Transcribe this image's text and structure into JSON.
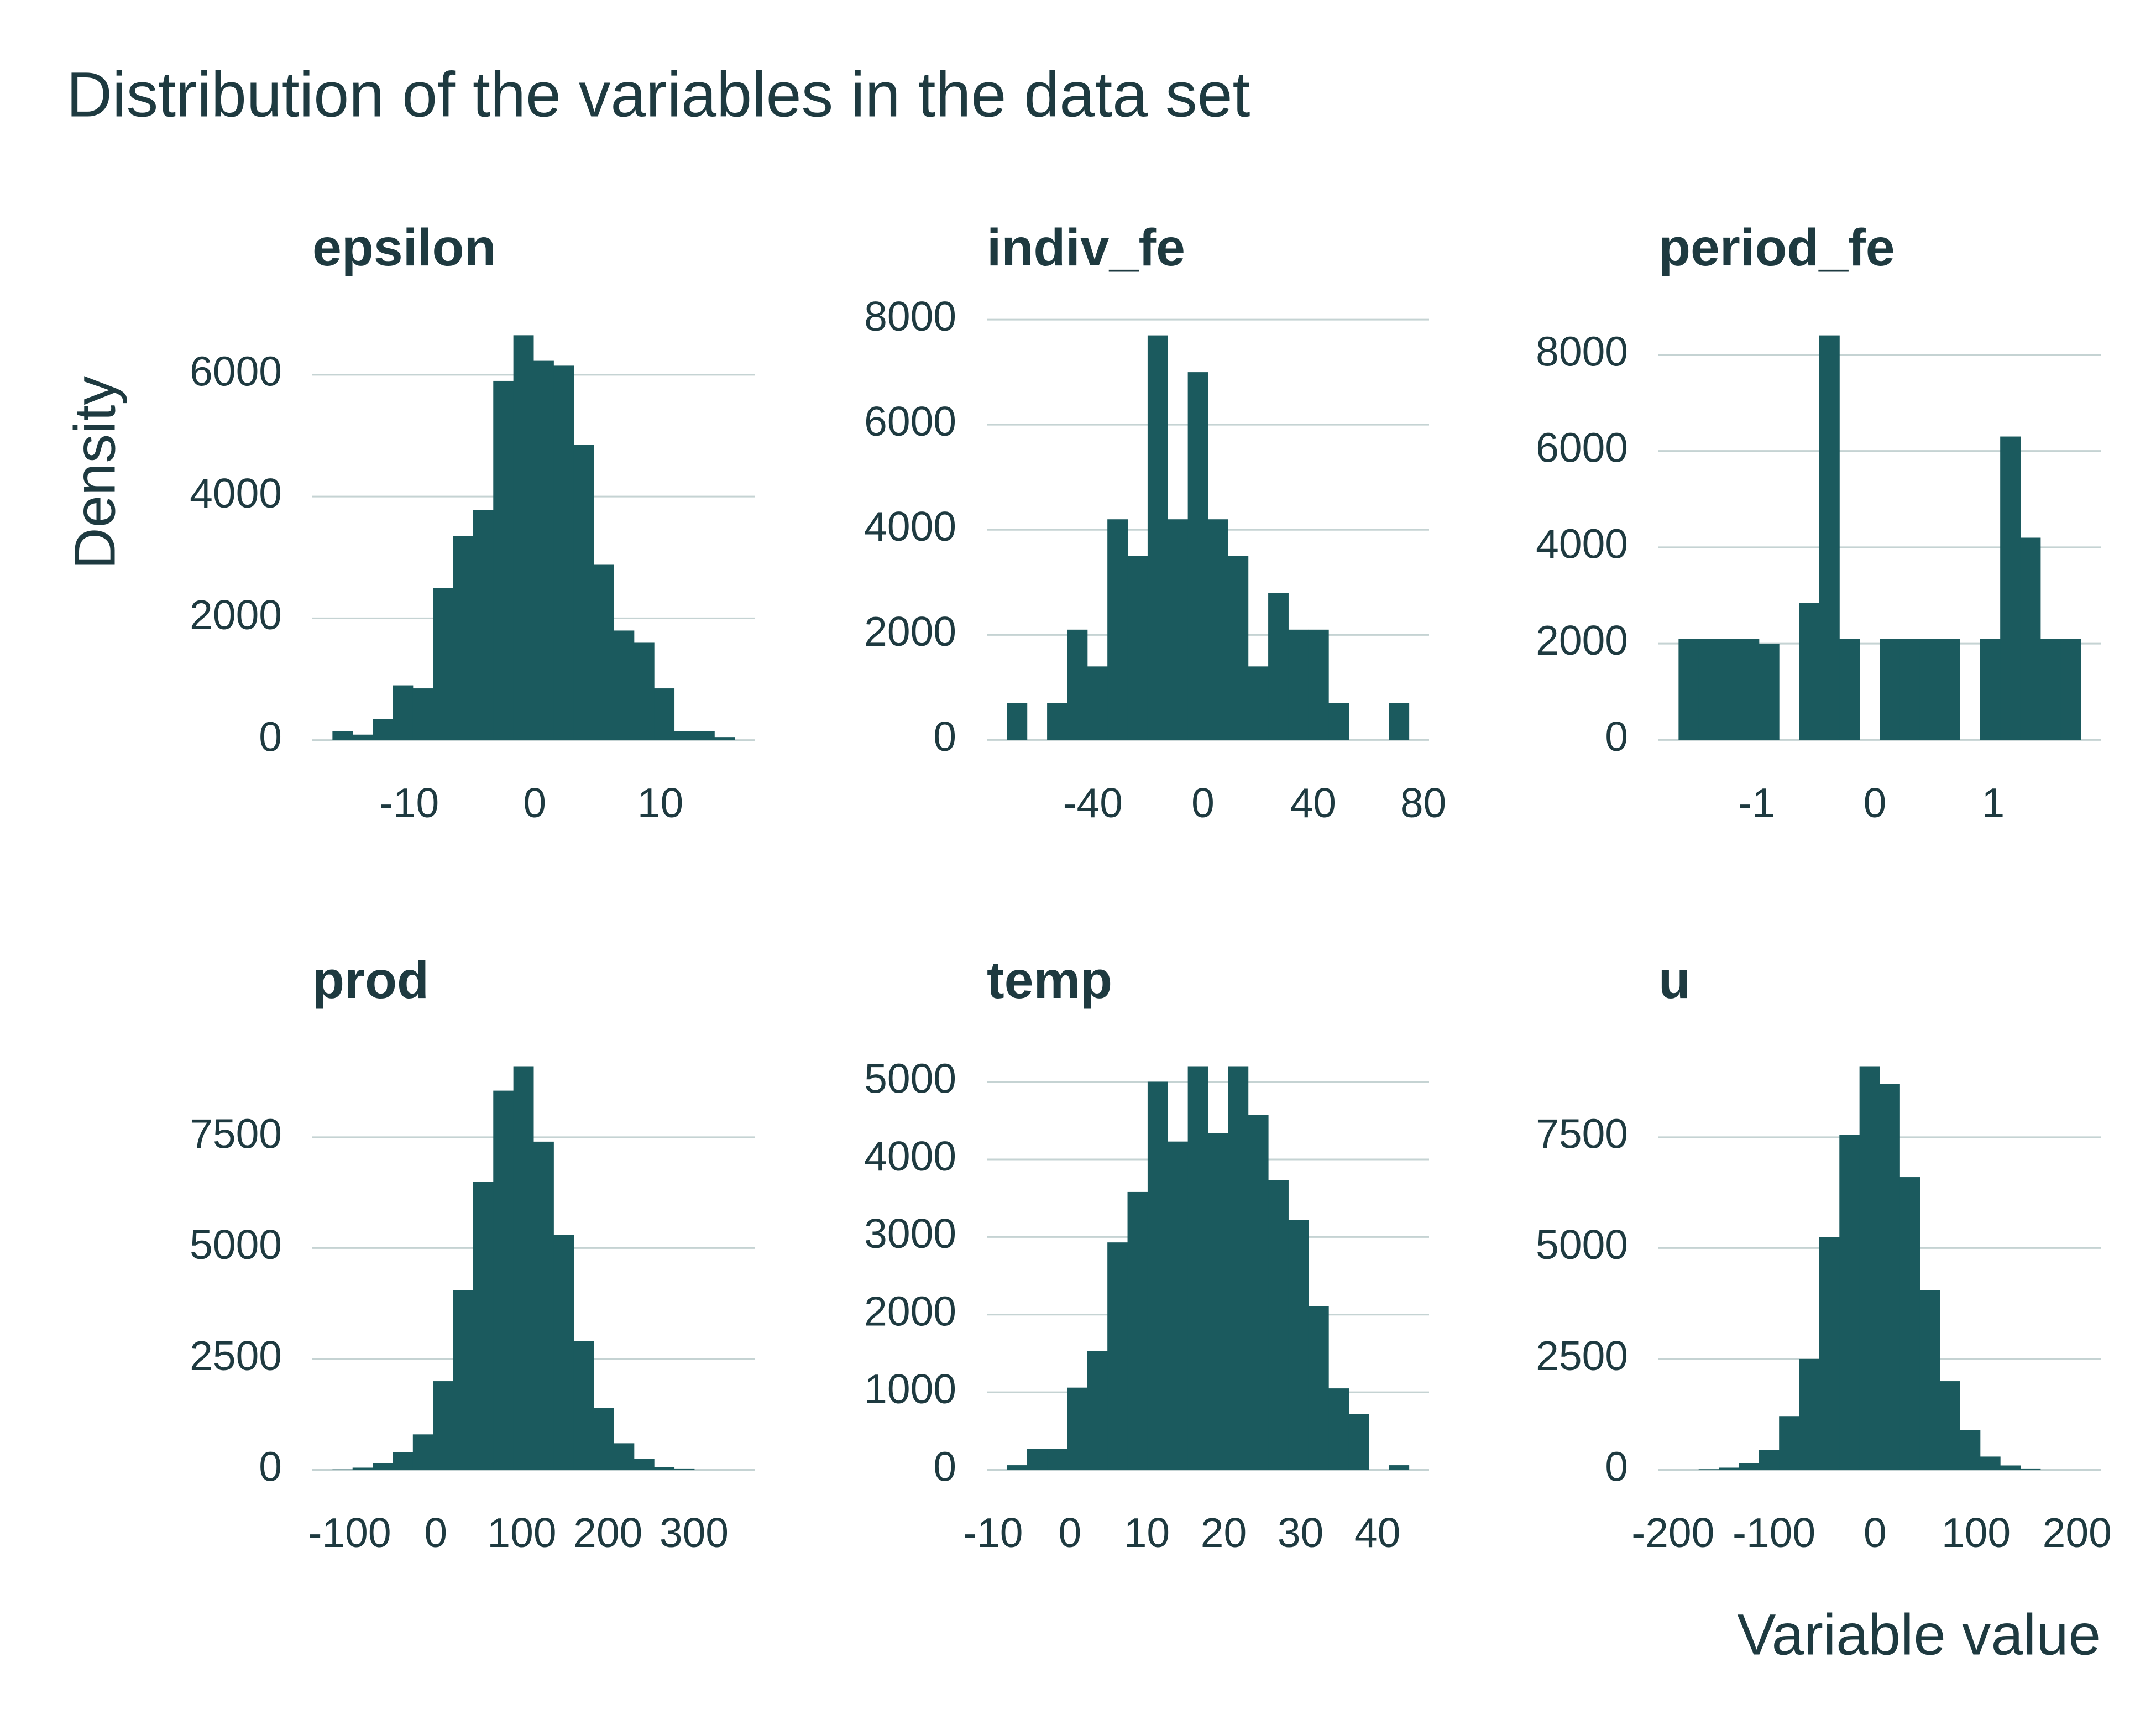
{
  "title": "Distribution of the variables in the data set",
  "y_label": "Density",
  "x_label": "Variable value",
  "chart_data": [
    {
      "type": "histogram",
      "title": "epsilon",
      "color": "#1b5a5e",
      "grid": true,
      "bins": [
        -16.1,
        -14.5,
        -12.9,
        -11.3,
        -9.7,
        -8.1,
        -6.5,
        -4.9,
        -3.3,
        -1.7,
        -0.1,
        1.5,
        3.1,
        4.7,
        6.3,
        7.9,
        9.5,
        11.1,
        12.7,
        14.3,
        15.9
      ],
      "values": [
        150,
        90,
        350,
        900,
        850,
        2500,
        3350,
        3780,
        5900,
        6650,
        6230,
        6150,
        4850,
        2880,
        1800,
        1600,
        850,
        150,
        150,
        50
      ],
      "xlim": [
        -17.7,
        17.5
      ],
      "xticks": [
        -10,
        0,
        10
      ],
      "ylim": [
        -330,
        6980
      ],
      "yticks": [
        0,
        2000,
        4000,
        6000
      ]
    },
    {
      "type": "histogram",
      "title": "indiv_fe",
      "color": "#1b5a5e",
      "grid": true,
      "bins": [
        -71.2,
        -63.9,
        -56.6,
        -49.3,
        -42,
        -34.7,
        -27.4,
        -20.1,
        -12.8,
        -5.5,
        1.8,
        9.1,
        16.4,
        23.7,
        31,
        38.3,
        45.6,
        52.9,
        60.2,
        67.5,
        74.8
      ],
      "values": [
        700,
        0,
        700,
        2100,
        1400,
        4200,
        3500,
        7700,
        4200,
        7000,
        4200,
        3500,
        1400,
        2800,
        2100,
        2100,
        700,
        0,
        0,
        700
      ],
      "xlim": [
        -78.5,
        82.1
      ],
      "xticks": [
        -40,
        0,
        40,
        80
      ],
      "ylim": [
        -385,
        8085
      ],
      "yticks": [
        0,
        2000,
        4000,
        6000,
        8000
      ]
    },
    {
      "type": "histogram",
      "title": "period_fe",
      "color": "#1b5a5e",
      "grid": true,
      "bins": [
        -1.66,
        -1.49,
        -1.32,
        -1.15,
        -0.98,
        -0.81,
        -0.64,
        -0.47,
        -0.3,
        -0.13,
        0.04,
        0.21,
        0.38,
        0.55,
        0.72,
        0.89,
        1.06,
        1.23,
        1.4,
        1.57,
        1.74
      ],
      "values": [
        2100,
        2100,
        2100,
        2100,
        2000,
        0,
        2850,
        8400,
        2100,
        0,
        2100,
        2100,
        2100,
        2100,
        0,
        2100,
        6300,
        4200,
        2100,
        2100
      ],
      "xlim": [
        -1.83,
        1.91
      ],
      "xticks": [
        -1,
        0,
        1
      ],
      "ylim": [
        -420,
        8820
      ],
      "yticks": [
        0,
        2000,
        4000,
        6000,
        8000
      ]
    },
    {
      "type": "histogram",
      "title": "prod",
      "color": "#1b5a5e",
      "grid": true,
      "bins": [
        -120,
        -96.65,
        -73.3,
        -49.95,
        -26.6,
        -3.25,
        20.1,
        43.45,
        66.8,
        90.15,
        113.5,
        136.85,
        160.2,
        183.55,
        206.9,
        230.25,
        253.6,
        276.95,
        300.3,
        323.65,
        347
      ],
      "values": [
        10,
        50,
        150,
        400,
        800,
        2000,
        4050,
        6500,
        8550,
        9100,
        7400,
        5300,
        2900,
        1400,
        600,
        250,
        60,
        20,
        5,
        2
      ],
      "xlim": [
        -143.35,
        370.35
      ],
      "xticks": [
        -100,
        0,
        100,
        200,
        300
      ],
      "ylim": [
        -455,
        9555
      ],
      "yticks": [
        0,
        2500,
        5000,
        7500
      ]
    },
    {
      "type": "histogram",
      "title": "temp",
      "color": "#1b5a5e",
      "grid": true,
      "bins": [
        -8.2,
        -5.585,
        -2.97,
        -0.355,
        2.26,
        4.875,
        7.49,
        10.105,
        12.72,
        15.335,
        17.95,
        20.565,
        23.18,
        25.795,
        28.41,
        31.025,
        33.64,
        36.255,
        38.87,
        41.485,
        44.1
      ],
      "values": [
        60,
        270,
        270,
        1060,
        1530,
        2930,
        3580,
        5000,
        4230,
        5200,
        4340,
        5200,
        4570,
        3730,
        3220,
        2110,
        1050,
        720,
        0,
        60
      ],
      "xlim": [
        -10.815,
        46.715
      ],
      "xticks": [
        -10,
        0,
        10,
        20,
        30,
        40
      ],
      "ylim": [
        -260,
        5460
      ],
      "yticks": [
        0,
        1000,
        2000,
        3000,
        4000,
        5000
      ]
    },
    {
      "type": "histogram",
      "title": "u",
      "color": "#1b5a5e",
      "grid": true,
      "bins": [
        -194.5,
        -174.6,
        -154.7,
        -134.8,
        -114.9,
        -95,
        -75.1,
        -55.2,
        -35.3,
        -15.4,
        4.5,
        24.4,
        44.3,
        64.2,
        84.1,
        104,
        123.9,
        143.8,
        163.7,
        183.6,
        203.5
      ],
      "values": [
        5,
        15,
        50,
        150,
        450,
        1200,
        2500,
        5250,
        7550,
        9100,
        8700,
        6600,
        4050,
        2000,
        900,
        300,
        100,
        20,
        5,
        2
      ],
      "xlim": [
        -214.4,
        223.4
      ],
      "xticks": [
        -200,
        -100,
        0,
        100,
        200
      ],
      "ylim": [
        -455,
        9555
      ],
      "yticks": [
        0,
        2500,
        5000,
        7500
      ]
    }
  ]
}
